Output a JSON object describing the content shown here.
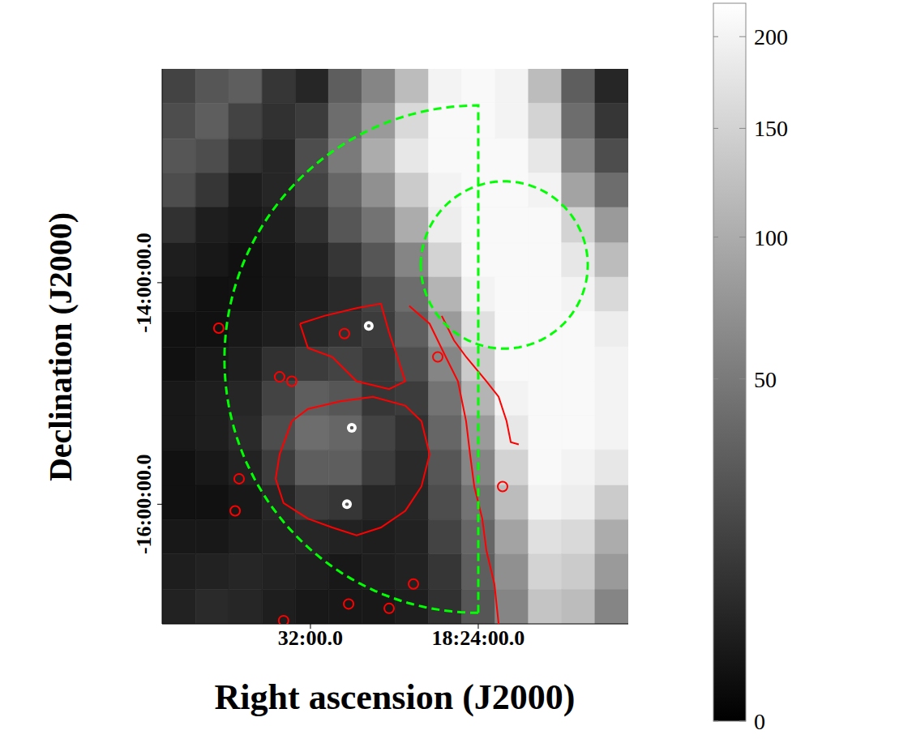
{
  "chart_data": {
    "type": "heatmap",
    "x_label": "Right ascension (J2000)",
    "y_label": "Declination (J2000)",
    "xlim": [
      39.07,
      16.85
    ],
    "ylim": [
      -17.08,
      -12.07
    ],
    "xticks": [
      {
        "value": 32,
        "label": "32:00.0"
      },
      {
        "value": 24,
        "label": "18:24:00.0"
      }
    ],
    "yticks": [
      {
        "value": -14,
        "label": "-14:00:00.0"
      },
      {
        "value": -16,
        "label": "-16:00:00.0"
      }
    ],
    "grid": false,
    "heatmap": {
      "x_edges": [
        39.07,
        37.48,
        35.9,
        34.31,
        32.72,
        31.14,
        29.55,
        27.96,
        26.37,
        24.79,
        23.2,
        21.61,
        20.03,
        18.44,
        16.85
      ],
      "y_edges": [
        -12.07,
        -12.38,
        -12.7,
        -13.01,
        -13.32,
        -13.64,
        -13.95,
        -14.26,
        -14.58,
        -14.89,
        -15.2,
        -15.51,
        -15.83,
        -16.14,
        -16.45,
        -16.77,
        -17.08
      ],
      "values": [
        [
          15,
          25,
          30,
          10,
          5,
          30,
          60,
          120,
          200,
          210,
          200,
          120,
          30,
          5
        ],
        [
          20,
          30,
          15,
          8,
          12,
          40,
          80,
          160,
          210,
          210,
          200,
          150,
          40,
          10
        ],
        [
          25,
          20,
          8,
          5,
          20,
          50,
          100,
          180,
          210,
          210,
          210,
          180,
          60,
          20
        ],
        [
          20,
          10,
          3,
          5,
          15,
          35,
          70,
          140,
          200,
          210,
          210,
          200,
          90,
          40
        ],
        [
          8,
          3,
          2,
          3,
          8,
          25,
          45,
          100,
          190,
          210,
          210,
          210,
          150,
          80
        ],
        [
          3,
          2,
          1,
          2,
          4,
          10,
          25,
          60,
          150,
          210,
          210,
          210,
          180,
          120
        ],
        [
          2,
          1,
          1,
          2,
          3,
          6,
          15,
          40,
          110,
          200,
          210,
          210,
          200,
          160
        ],
        [
          1,
          1,
          2,
          3,
          5,
          8,
          12,
          30,
          80,
          170,
          210,
          210,
          210,
          190
        ],
        [
          1,
          2,
          3,
          8,
          12,
          15,
          10,
          20,
          60,
          140,
          210,
          210,
          210,
          200
        ],
        [
          2,
          3,
          5,
          15,
          30,
          25,
          10,
          12,
          45,
          110,
          200,
          210,
          210,
          200
        ],
        [
          2,
          3,
          6,
          20,
          40,
          35,
          15,
          8,
          35,
          80,
          180,
          210,
          210,
          200
        ],
        [
          1,
          2,
          4,
          12,
          30,
          30,
          12,
          6,
          25,
          60,
          150,
          210,
          200,
          180
        ],
        [
          1,
          1,
          2,
          5,
          12,
          10,
          5,
          5,
          20,
          45,
          120,
          200,
          190,
          140
        ],
        [
          2,
          2,
          3,
          4,
          5,
          4,
          3,
          4,
          15,
          35,
          90,
          170,
          160,
          100
        ],
        [
          3,
          4,
          5,
          4,
          3,
          2,
          3,
          4,
          10,
          30,
          70,
          150,
          140,
          80
        ],
        [
          4,
          6,
          5,
          3,
          2,
          2,
          2,
          3,
          8,
          25,
          60,
          130,
          120,
          60
        ]
      ],
      "colorbar_range": [
        0,
        220
      ],
      "colorbar_ticks": [
        0,
        50,
        100,
        150,
        200
      ]
    },
    "contours": {
      "color": "#ff0000",
      "lines": [
        {
          "x": [
            27.29,
            26.32,
            25.55,
            24.97,
            24.58,
            24.39,
            24.19,
            23.81,
            23.61,
            23.23,
            23.03
          ],
          "y": [
            -14.21,
            -14.37,
            -14.67,
            -14.89,
            -15.25,
            -15.55,
            -15.84,
            -16.13,
            -16.42,
            -16.72,
            -17.08
          ]
        },
        {
          "x": [
            25.74,
            25.16,
            24.58,
            23.61,
            23.03,
            22.65,
            22.45,
            22.07
          ],
          "y": [
            -14.3,
            -14.52,
            -14.67,
            -14.89,
            -15.03,
            -15.25,
            -15.44,
            -15.46
          ]
        },
        {
          "x": [
            32.89,
            32.12,
            30.57,
            29.02,
            27.48,
            26.71,
            26.32,
            26.71,
            27.48,
            28.64,
            29.8,
            30.96,
            32.12,
            33.28,
            33.66,
            33.47,
            32.89
          ],
          "y": [
            -15.25,
            -15.14,
            -15.07,
            -15.03,
            -15.11,
            -15.25,
            -15.55,
            -15.84,
            -16.06,
            -16.21,
            -16.28,
            -16.21,
            -16.13,
            -15.99,
            -15.77,
            -15.55,
            -15.25
          ]
        },
        {
          "x": [
            32.5,
            31.34,
            29.8,
            28.64,
            28.25,
            27.86,
            27.48,
            28.25,
            29.8,
            30.96,
            32.12,
            32.5
          ],
          "y": [
            -14.37,
            -14.3,
            -14.23,
            -14.19,
            -14.45,
            -14.67,
            -14.89,
            -14.96,
            -14.89,
            -14.67,
            -14.59,
            -14.37
          ]
        }
      ],
      "spots": {
        "marker": "circle",
        "x": [
          30.38,
          33.47,
          25.93,
          36.37,
          35.59,
          22.84,
          27.09,
          28.25,
          33.28,
          30.18,
          35.4,
          32.89
        ],
        "y": [
          -14.46,
          -14.85,
          -14.67,
          -14.41,
          -16.06,
          -15.84,
          -16.72,
          -16.94,
          -17.05,
          -16.9,
          -15.77,
          -14.89
        ]
      }
    },
    "sources": {
      "color": "#ffffff",
      "marker": "dot",
      "x": [
        29.22,
        30.03,
        30.26
      ],
      "y": [
        -14.39,
        -15.31,
        -16.0
      ]
    },
    "regions": [
      {
        "type": "half_circle",
        "color": "#00ff00",
        "line_style": "dashed",
        "center": [
          24,
          -14.69
        ],
        "radius": [
          12.1,
          2.29
        ]
      },
      {
        "type": "circle",
        "color": "#00ff00",
        "line_style": "dashed",
        "center": [
          22.76,
          -13.84
        ],
        "radius": [
          3.98,
          0.755
        ]
      }
    ]
  }
}
